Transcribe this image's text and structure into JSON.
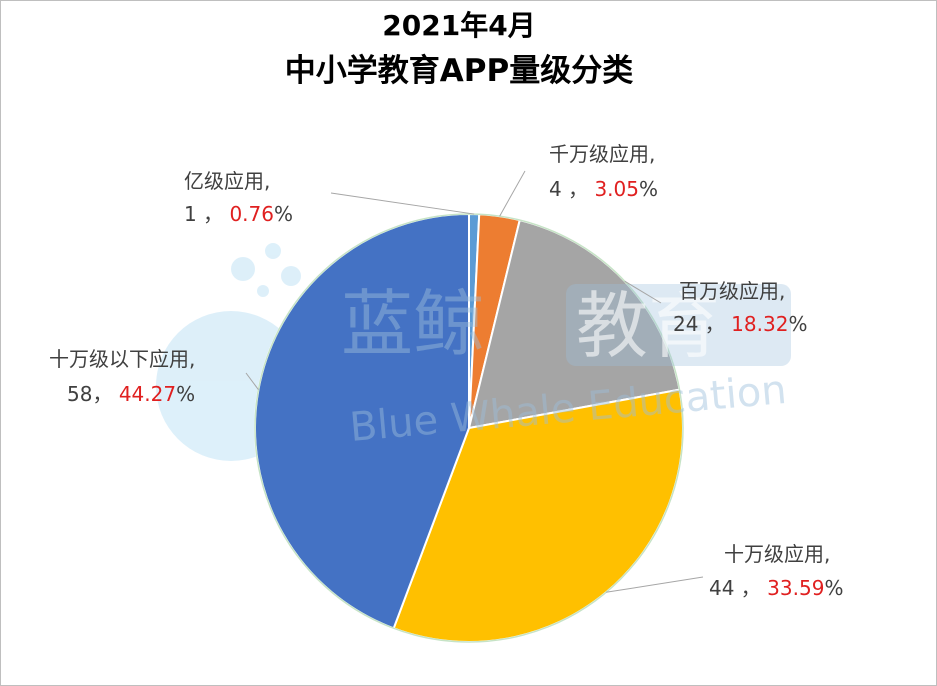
{
  "chart_data": {
    "type": "pie",
    "title_line1": "2021年4月",
    "title_line2": "中小学教育APP量级分类",
    "slices": [
      {
        "name": "亿级应用",
        "count": 1,
        "count_text": "1",
        "percent": 0.76,
        "percent_text": "0.76",
        "color": "#5b9bd5"
      },
      {
        "name": "千万级应用",
        "count": 4,
        "count_text": "4",
        "percent": 3.05,
        "percent_text": "3.05",
        "color": "#ed7d31"
      },
      {
        "name": "百万级应用",
        "count": 24,
        "count_text": "24",
        "percent": 18.32,
        "percent_text": "18.32",
        "color": "#a5a5a5"
      },
      {
        "name": "十万级应用",
        "count": 44,
        "count_text": "44",
        "percent": 33.59,
        "percent_text": "33.59",
        "color": "#ffc000"
      },
      {
        "name": "十万级以下应用",
        "count": 58,
        "count_text": "58",
        "percent": 44.27,
        "percent_text": "44.27",
        "color": "#4472c4"
      }
    ]
  },
  "watermark": {
    "brand_cn_part1": "蓝鲸",
    "brand_cn_part2": "教育",
    "brand_en": "Blue Whale Education"
  }
}
